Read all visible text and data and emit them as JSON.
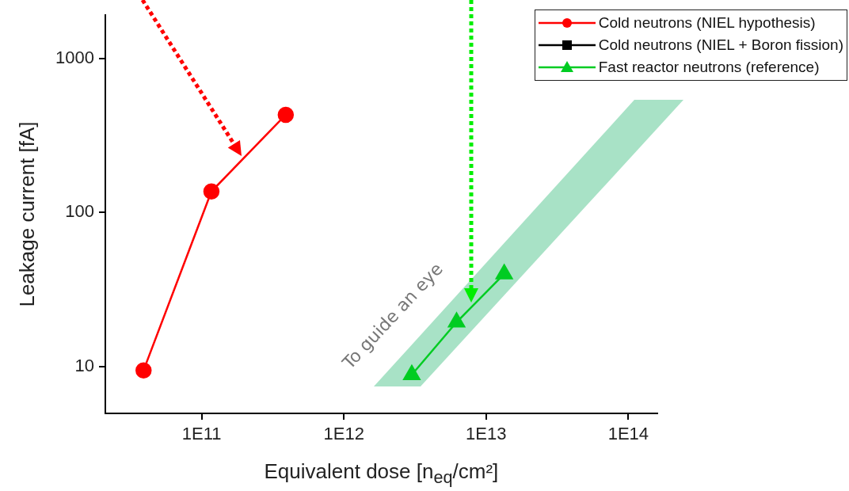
{
  "chart_data": {
    "type": "line",
    "xlabel": "Equivalent dose [n$_{eq}$/cm²]",
    "ylabel": "Leakage current [fA]",
    "log": "xy",
    "xlim": [
      21000000000.0,
      160000000000000.0
    ],
    "ylim": [
      5,
      1900
    ],
    "xticks": [
      {
        "value": 100000000000.0,
        "label": "1E11"
      },
      {
        "value": 1000000000000.0,
        "label": "1E12"
      },
      {
        "value": 10000000000000.0,
        "label": "1E13"
      },
      {
        "value": 100000000000000.0,
        "label": "1E14"
      }
    ],
    "yticks": [
      10,
      100,
      1000
    ],
    "grid": false,
    "legend": "top right",
    "series": [
      {
        "name": "Cold neutrons (NIEL hypothesis)",
        "color": "#ff0000",
        "marker": "circle",
        "x": [
          39000000000.0,
          117000000000.0,
          390000000000.0
        ],
        "values": [
          9.5,
          137,
          430
        ]
      },
      {
        "name": "Cold neutrons (NIEL + Boron fission)",
        "color": "#000000",
        "marker": "square"
      },
      {
        "name": "Fast reactor neutrons (reference)",
        "color": "#00cc22",
        "marker": "triangle",
        "x": [
          3000000000000.0,
          6200000000000.0,
          13400000000000.0
        ],
        "values": [
          8.9,
          19.5,
          40
        ]
      }
    ],
    "annotations": [
      "To guide an eye"
    ]
  }
}
